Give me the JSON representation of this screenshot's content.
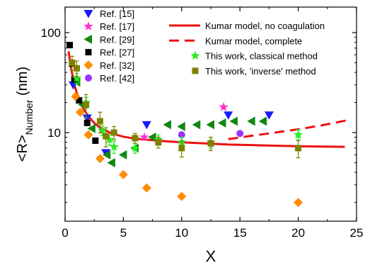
{
  "chart_data": {
    "type": "scatter",
    "xlabel": "X",
    "ylabel_main": "<R>",
    "ylabel_sub": "Number",
    "ylabel_unit": " (nm)",
    "xlim": [
      0,
      25
    ],
    "ylim": [
      1.3,
      180
    ],
    "y_scale": "log",
    "x_ticks": [
      0,
      5,
      10,
      15,
      20,
      25
    ],
    "y_ticks": [
      10,
      100
    ],
    "grid": false,
    "legend_left": [
      {
        "label": "Ref. [15]",
        "series": "ref15"
      },
      {
        "label": "Ref. [17]",
        "series": "ref17"
      },
      {
        "label": "Ref. [29]",
        "series": "ref29"
      },
      {
        "label": "Ref. [27]",
        "series": "ref27"
      },
      {
        "label": "Ref. [32]",
        "series": "ref32"
      },
      {
        "label": "Ref. [42]",
        "series": "ref42"
      }
    ],
    "legend_right": [
      {
        "label": "Kumar model, no coagulation",
        "series": "kumar_nocoag"
      },
      {
        "label": "Kumar model, complete",
        "series": "kumar_complete"
      },
      {
        "label": "This work, classical method",
        "series": "classical"
      },
      {
        "label": "This work, 'inverse' method",
        "series": "inverse"
      }
    ],
    "series": [
      {
        "id": "ref15",
        "marker": "triangle-down",
        "color": "#1a1aff",
        "points": [
          [
            0.7,
            30
          ],
          [
            1.9,
            14
          ],
          [
            3.5,
            6.3
          ],
          [
            7,
            12
          ],
          [
            14,
            15
          ],
          [
            17.5,
            15
          ]
        ]
      },
      {
        "id": "ref17",
        "marker": "star",
        "color": "#ff33cc",
        "points": [
          [
            6.8,
            9
          ],
          [
            13.6,
            18
          ]
        ]
      },
      {
        "id": "ref29",
        "marker": "triangle-left",
        "color": "#118811",
        "points": [
          [
            1,
            32
          ],
          [
            1.5,
            19
          ],
          [
            2.3,
            11
          ],
          [
            3.6,
            6
          ],
          [
            4,
            5
          ],
          [
            5,
            6
          ],
          [
            6,
            7
          ],
          [
            7.5,
            9
          ],
          [
            8.8,
            12
          ],
          [
            10,
            11.5
          ],
          [
            11.3,
            12
          ],
          [
            12.5,
            12
          ],
          [
            13.5,
            12.5
          ],
          [
            14.5,
            13
          ],
          [
            16,
            13
          ],
          [
            17,
            13
          ]
        ]
      },
      {
        "id": "ref27",
        "marker": "square",
        "color": "#000000",
        "points": [
          [
            0.4,
            75
          ],
          [
            0.6,
            49
          ],
          [
            0.8,
            34
          ],
          [
            1.2,
            21
          ],
          [
            1.9,
            12.5
          ],
          [
            2.6,
            8.3
          ]
        ]
      },
      {
        "id": "ref32",
        "marker": "diamond",
        "color": "#ff8c00",
        "points": [
          [
            0.9,
            23
          ],
          [
            1.3,
            16
          ],
          [
            2,
            9.5
          ],
          [
            3,
            5.5
          ],
          [
            5,
            3.8
          ],
          [
            7,
            2.8
          ],
          [
            10,
            2.3
          ],
          [
            20,
            2
          ]
        ]
      },
      {
        "id": "ref42",
        "marker": "circle",
        "color": "#9933ff",
        "points": [
          [
            10,
            9.5
          ],
          [
            15,
            9.8
          ]
        ]
      },
      {
        "id": "classical",
        "marker": "star",
        "color": "#22ee22",
        "points": [
          [
            1,
            35
          ],
          [
            1.8,
            20
          ],
          [
            3.2,
            10.5
          ],
          [
            3.8,
            8.5
          ],
          [
            4.2,
            7.2
          ],
          [
            6,
            7
          ],
          [
            8,
            8.5
          ],
          [
            10,
            8
          ],
          [
            12.5,
            8
          ],
          [
            20,
            9.5
          ]
        ],
        "errors": [
          [
            1,
            4
          ],
          [
            1.8,
            2.5
          ],
          [
            3.2,
            1.2
          ],
          [
            3.8,
            1
          ],
          [
            4.2,
            1
          ],
          [
            6,
            0.8
          ],
          [
            8,
            1
          ],
          [
            10,
            1
          ],
          [
            12.5,
            1
          ],
          [
            20,
            1.2
          ]
        ]
      },
      {
        "id": "inverse",
        "marker": "square",
        "color": "#808000",
        "points": [
          [
            0.6,
            50
          ],
          [
            1,
            44
          ],
          [
            1.8,
            19
          ],
          [
            3,
            13
          ],
          [
            3.5,
            9.2
          ],
          [
            4.2,
            10
          ],
          [
            6,
            8.8
          ],
          [
            8,
            8
          ],
          [
            10,
            7
          ],
          [
            12.5,
            7.8
          ],
          [
            20,
            7
          ]
        ],
        "errors": [
          [
            0.6,
            8
          ],
          [
            1,
            8
          ],
          [
            1.8,
            5
          ],
          [
            3,
            3
          ],
          [
            3.5,
            2
          ],
          [
            4.2,
            1.5
          ],
          [
            6,
            1
          ],
          [
            8,
            1
          ],
          [
            10,
            1.3
          ],
          [
            12.5,
            1.2
          ],
          [
            20,
            1.4
          ]
        ]
      }
    ],
    "lines": [
      {
        "id": "kumar_nocoag",
        "style": "solid",
        "color": "#ee1111",
        "x": [
          0.3,
          0.5,
          0.8,
          1.0,
          1.5,
          2.0,
          2.5,
          3.0,
          4.0,
          5.0,
          6.0,
          8.0,
          10.0,
          12.0,
          14.0,
          16.0,
          18.0,
          20.0,
          22.0,
          24.0
        ],
        "y": [
          65,
          45,
          30,
          25,
          18,
          14.5,
          12.5,
          11.2,
          9.8,
          9.1,
          8.7,
          8.3,
          8.0,
          7.8,
          7.6,
          7.5,
          7.4,
          7.3,
          7.25,
          7.2
        ]
      },
      {
        "id": "kumar_complete",
        "style": "dashed",
        "color": "#ee1111",
        "x": [
          14.0,
          16.0,
          18.0,
          20.0,
          22.0,
          24.5
        ],
        "y": [
          8.6,
          9.3,
          10.0,
          10.8,
          11.8,
          13.5
        ]
      }
    ]
  }
}
